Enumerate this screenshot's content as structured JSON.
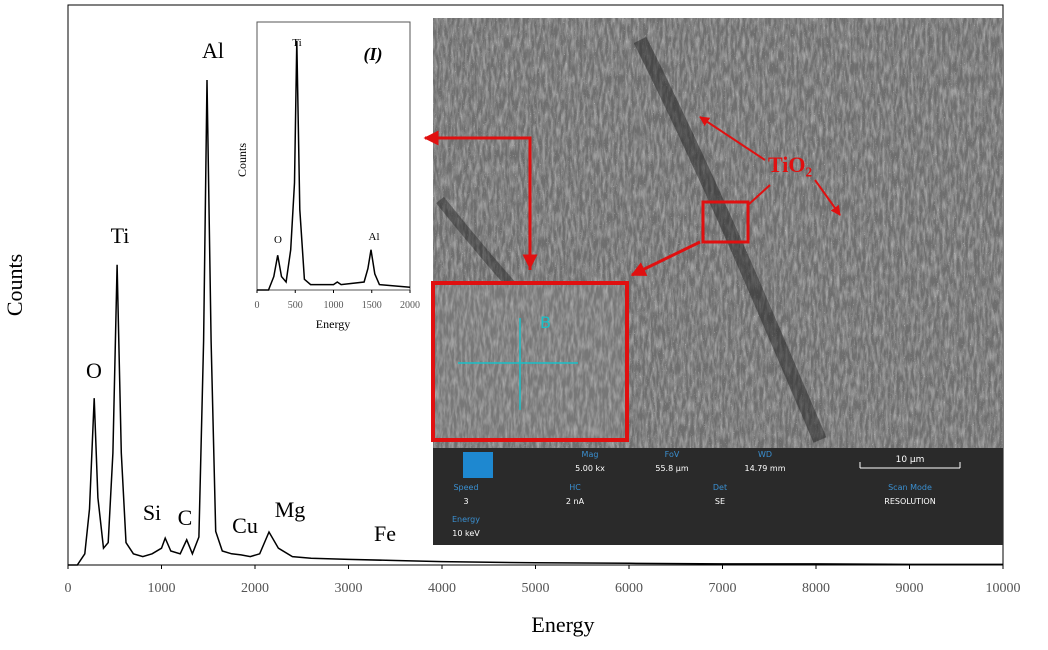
{
  "chart_data": [
    {
      "type": "line",
      "xlabel": "Energy",
      "ylabel": "Counts",
      "x": [
        0,
        100,
        180,
        230,
        280,
        320,
        380,
        430,
        480,
        525,
        570,
        620,
        700,
        800,
        900,
        1000,
        1040,
        1100,
        1200,
        1270,
        1330,
        1400,
        1450,
        1487,
        1530,
        1580,
        1650,
        1750,
        1850,
        1950,
        2050,
        2150,
        2250,
        2400,
        2600,
        3000,
        3500,
        4000,
        5000,
        6000,
        7000,
        8000,
        9000,
        10000
      ],
      "values": [
        0,
        0,
        2,
        10,
        29.8,
        12,
        3,
        4,
        20,
        53.6,
        20,
        4,
        2,
        1.5,
        2,
        3,
        4.8,
        2.5,
        2,
        4.5,
        2,
        5,
        40,
        86.6,
        40,
        6,
        2.5,
        2,
        1.8,
        1.5,
        2,
        5.9,
        3,
        1.5,
        1.2,
        1,
        0.8,
        0.6,
        0.4,
        0.3,
        0.2,
        0.2,
        0.1,
        0.1
      ],
      "color": "#000000",
      "xlim": [
        0,
        10000
      ],
      "xticks": [
        0,
        1000,
        2000,
        3000,
        4000,
        5000,
        6000,
        7000,
        8000,
        9000,
        10000
      ],
      "ylim": [
        0,
        100
      ],
      "annotations": [
        "O",
        "Ti",
        "Al",
        "Si",
        "C",
        "Cu",
        "Mg",
        "Fe"
      ]
    },
    {
      "type": "line",
      "title": "(I)",
      "xlabel": "Energy",
      "ylabel": "Counts",
      "x": [
        0,
        150,
        220,
        270,
        320,
        380,
        440,
        490,
        520,
        560,
        620,
        700,
        1000,
        1050,
        1100,
        1400,
        1450,
        1490,
        1540,
        1600,
        2000
      ],
      "values": [
        0,
        0,
        5,
        13,
        5,
        3,
        15,
        40,
        93,
        30,
        4,
        2,
        2,
        3,
        2,
        3,
        8,
        15,
        6,
        2,
        1
      ],
      "color": "#000000",
      "xlim": [
        0,
        2000
      ],
      "xticks": [
        0,
        500,
        1000,
        1500,
        2000
      ],
      "ylim": [
        0,
        100
      ],
      "annotations": [
        "O",
        "Ti",
        "Al"
      ]
    }
  ],
  "sem_image": {
    "annotation": "TiO₂",
    "marker": "B",
    "scale_bar": "10 µm",
    "fields": [
      {
        "label": "Mag",
        "value": "5.00 kx"
      },
      {
        "label": "FoV",
        "value": "55.8 µm"
      },
      {
        "label": "WD",
        "value": "14.79 mm"
      },
      {
        "label": "Speed",
        "value": "3"
      },
      {
        "label": "HC",
        "value": "2 nA"
      },
      {
        "label": "Det",
        "value": "SE"
      },
      {
        "label": "Scan Mode",
        "value": "RESOLUTION"
      },
      {
        "label": "Energy",
        "value": "10 keV"
      }
    ]
  }
}
